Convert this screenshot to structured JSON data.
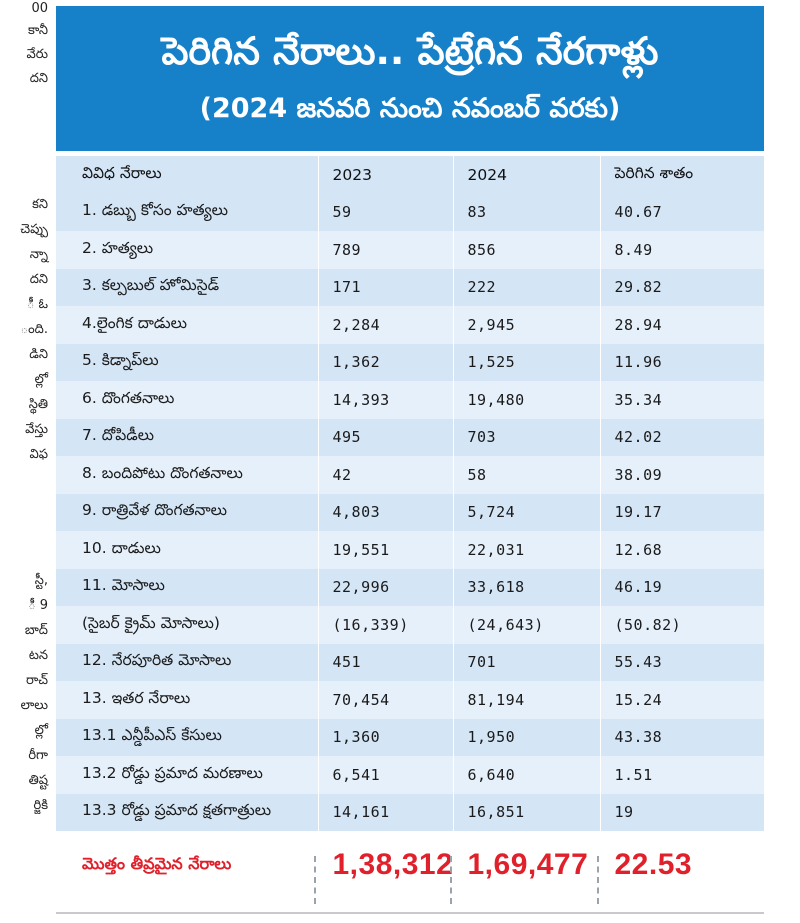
{
  "side_text": [
    "00",
    "కానీ",
    "వేరు",
    "దని",
    "కని",
    "చెప్పు",
    "న్నా",
    "దని",
    "ీ ఓ",
    "ంది.",
    "డిని",
    "ల్లో",
    "స్థితి",
    "వేస్తు",
    "విఫ",
    "స్టీ,",
    "ీ 9",
    "బాద్",
    "టన",
    "రాచ్",
    "లాలు",
    "ల్లో",
    "రీగా",
    "తిష్ట",
    "ర్జికి"
  ],
  "banner": {
    "title": "పెరిగిన నేరాలు.. పేట్రేగిన నేరగాళ్లు",
    "subtitle": "(2024 జనవరి నుంచి నవంబర్ వరకు)"
  },
  "table": {
    "headers": [
      "వివిధ నేరాలు",
      "2023",
      "2024",
      "పెరిగిన శాతం"
    ],
    "rows": [
      [
        "1. డబ్బు కోసం హత్యలు",
        "59",
        "83",
        "40.67"
      ],
      [
        "2. హత్యలు",
        "789",
        "856",
        "8.49"
      ],
      [
        "3. కల్పబుల్ హోమిసైడ్",
        "171",
        "222",
        "29.82"
      ],
      [
        "4.లైంగిక దాడులు",
        "2,284",
        "2,945",
        "28.94"
      ],
      [
        "5. కిడ్నాప్‌లు",
        "1,362",
        "1,525",
        "11.96"
      ],
      [
        "6. దొంగతనాలు",
        "14,393",
        "19,480",
        "35.34"
      ],
      [
        "7. దోపిడీలు",
        "495",
        "703",
        "42.02"
      ],
      [
        "8. బందిపోటు దొంగతనాలు",
        "42",
        "58",
        "38.09"
      ],
      [
        "9. రాత్రివేళ దొంగతనాలు",
        "4,803",
        "5,724",
        "19.17"
      ],
      [
        "10. దాడులు",
        "19,551",
        "22,031",
        "12.68"
      ],
      [
        "11. మోసాలు",
        "22,996",
        "33,618",
        "46.19"
      ],
      [
        "(సైబర్ క్రైమ్ మోసాలు)",
        "(16,339)",
        "(24,643)",
        "(50.82)"
      ],
      [
        "12. నేరపూరిత మోసాలు",
        "451",
        "701",
        "55.43"
      ],
      [
        "13. ఇతర నేరాలు",
        "70,454",
        "81,194",
        "15.24"
      ],
      [
        "13.1 ఎన్డీపీఎస్ కేసులు",
        "1,360",
        "1,950",
        "43.38"
      ],
      [
        "13.2 రోడ్డు ప్రమాద మరణాలు",
        "6,541",
        "6,640",
        "1.51"
      ],
      [
        "13.3 రోడ్డు ప్రమాద క్షతగాత్రులు",
        "14,161",
        "16,851",
        "19"
      ]
    ],
    "total": [
      "మొత్తం తీవ్రమైన నేరాలు",
      "1,38,312",
      "1,69,477",
      "22.53"
    ]
  },
  "colors": {
    "banner": "#1680c8",
    "row_dark": "#d4e5f6",
    "row_light": "#e6f0fa",
    "total_text": "#e0202a"
  }
}
